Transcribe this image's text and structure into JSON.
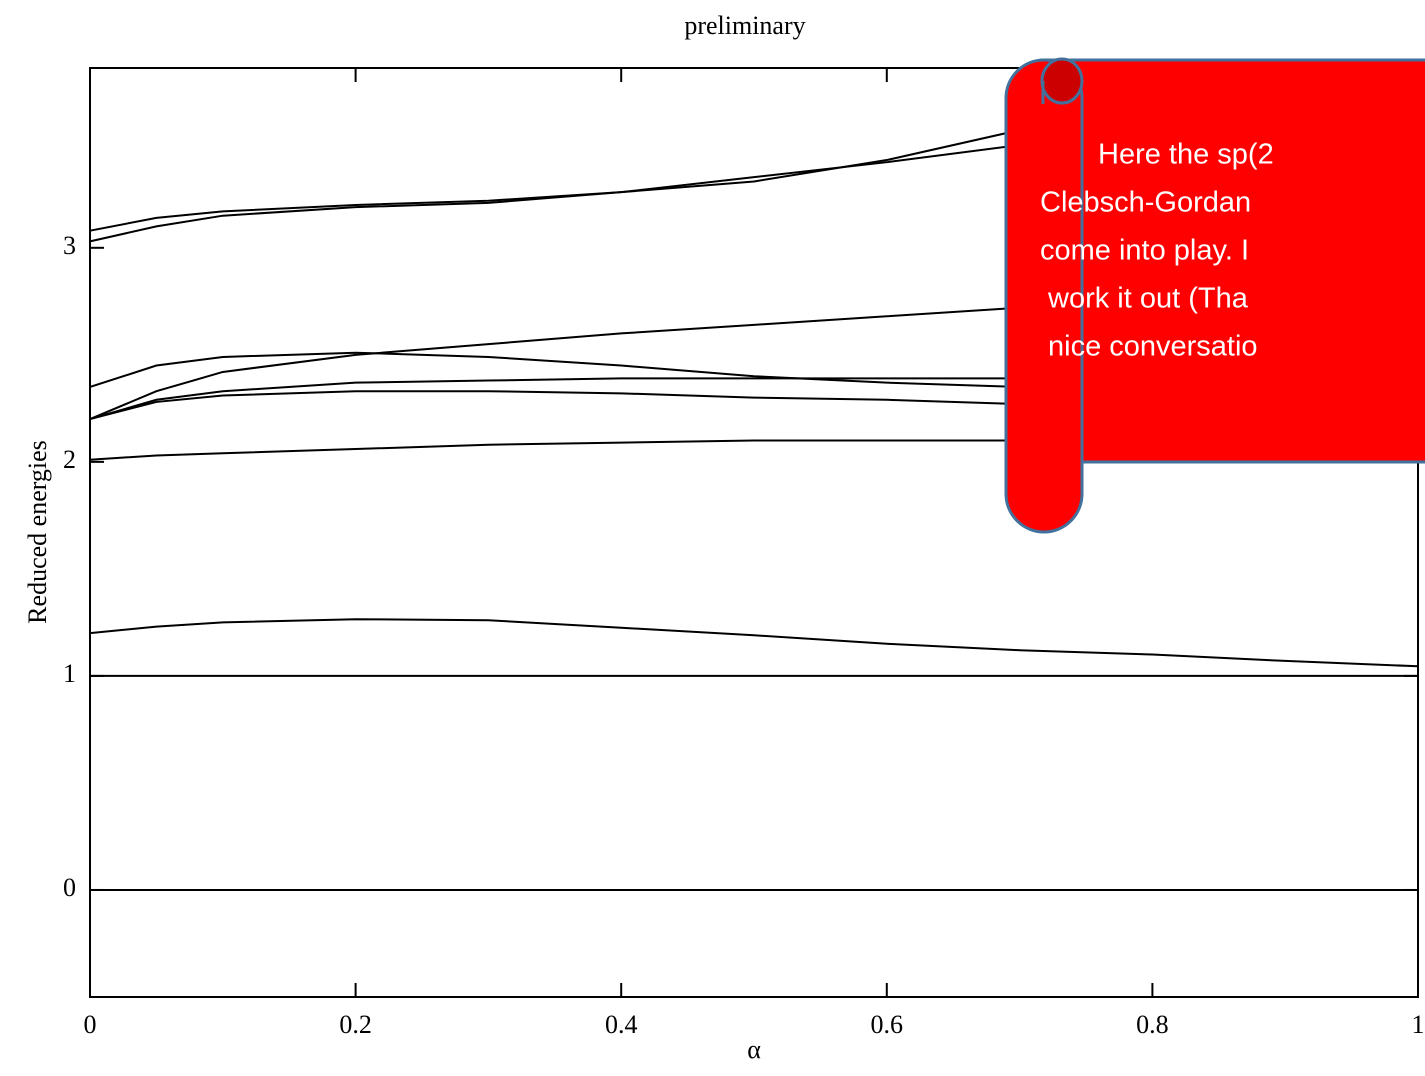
{
  "chart_data": {
    "type": "line",
    "title": "preliminary",
    "x_label": "α",
    "y_label": "Reduced energies",
    "x": [
      0,
      0.05,
      0.1,
      0.2,
      0.3,
      0.4,
      0.5,
      0.6,
      0.7,
      0.8,
      0.9,
      1
    ],
    "xlim": [
      0,
      1
    ],
    "xticks": [
      0,
      0.2,
      0.4,
      0.6,
      0.8,
      1
    ],
    "ylim": [
      -0.5,
      3.84
    ],
    "yticks": [
      0,
      1,
      2,
      3
    ],
    "series": [
      {
        "color": "#000000",
        "values": [
          0,
          0,
          0,
          0,
          0,
          0,
          0,
          0,
          0,
          0,
          0,
          0
        ]
      },
      {
        "color": "#000000",
        "values": [
          1,
          1,
          1,
          1,
          1,
          1,
          1,
          1,
          1,
          1,
          1,
          1
        ]
      },
      {
        "color": "#000000",
        "values": [
          1.2,
          1.23,
          1.25,
          1.265,
          1.26,
          1.225,
          1.19,
          1.15,
          1.12,
          1.1,
          1.07,
          1.045
        ]
      },
      {
        "color": "#000000",
        "values": [
          2.01,
          2.03,
          2.04,
          2.06,
          2.08,
          2.09,
          2.1,
          2.1,
          2.1,
          2.1,
          2.1,
          2.1
        ]
      },
      {
        "color": "#000000",
        "values": [
          2.2,
          2.29,
          2.33,
          2.37,
          2.38,
          2.39,
          2.39,
          2.39,
          2.39,
          2.39,
          2.39,
          2.39
        ]
      },
      {
        "color": "#000000",
        "values": [
          2.2,
          2.28,
          2.31,
          2.33,
          2.33,
          2.32,
          2.3,
          2.29,
          2.27,
          2.26,
          2.25,
          2.24
        ]
      },
      {
        "color": "#000000",
        "values": [
          2.2,
          2.33,
          2.42,
          2.5,
          2.55,
          2.6,
          2.64,
          2.68,
          2.72,
          2.76,
          2.8,
          2.84
        ]
      },
      {
        "color": "#000000",
        "values": [
          2.35,
          2.45,
          2.49,
          2.51,
          2.49,
          2.45,
          2.4,
          2.37,
          2.35,
          2.33,
          2.31,
          2.3
        ]
      },
      {
        "color": "#000000",
        "values": [
          3.08,
          3.14,
          3.17,
          3.2,
          3.22,
          3.26,
          3.31,
          3.41,
          3.55,
          3.62,
          3.68,
          3.74
        ]
      },
      {
        "color": "#000000",
        "values": [
          3.03,
          3.1,
          3.15,
          3.19,
          3.21,
          3.26,
          3.33,
          3.4,
          3.48,
          3.55,
          3.62,
          3.69
        ]
      }
    ],
    "annotation": {
      "lines": [
        "Here the sp(2",
        "Clebsch-Gordan",
        "come into play. I",
        "work it out (Tha",
        "nice conversatio"
      ]
    }
  }
}
